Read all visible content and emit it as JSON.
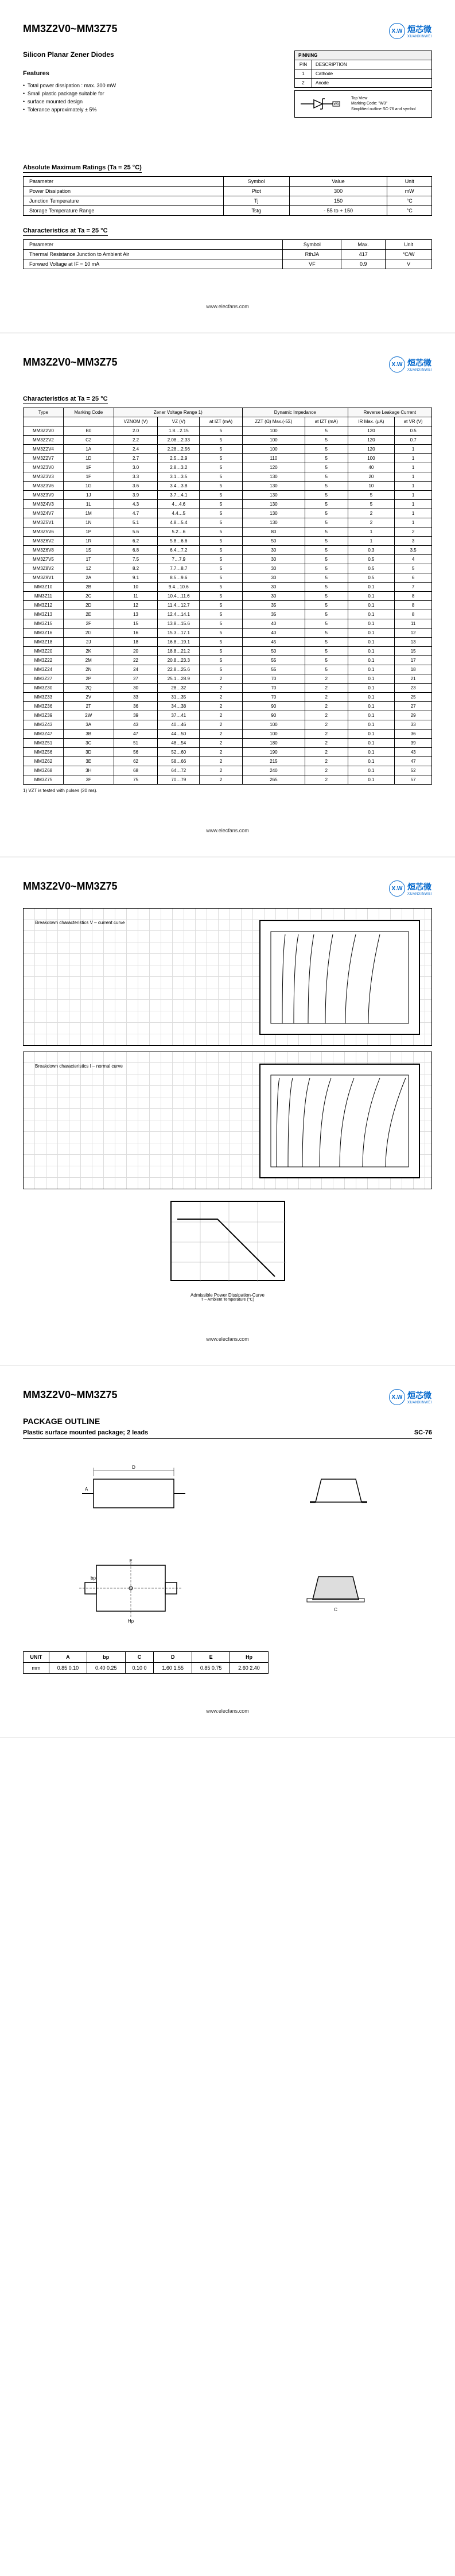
{
  "part_number": "MM3Z2V0~MM3Z75",
  "subtitle": "Silicon Planar Zener Diodes",
  "logo": {
    "mark": "X.W",
    "cn": "烜芯微",
    "en": "XUANXINWEI"
  },
  "url": "www.elecfans.com",
  "features": {
    "title": "Features",
    "items": [
      "Total power dissipation : max. 300 mW",
      "Small plastic package suitable for",
      "surface mounted design",
      "Tolerance approximately ± 5%"
    ]
  },
  "pinning": {
    "title": "PINNING",
    "headers": [
      "PIN",
      "DESCRIPTION"
    ],
    "rows": [
      [
        "1",
        "Cathode"
      ],
      [
        "2",
        "Anode"
      ]
    ],
    "symbol_label": "W3",
    "note_lines": [
      "Top View",
      "Marking Code: \"W3\"",
      "Simplified outline SC-76 and symbol"
    ]
  },
  "abs_max": {
    "title": "Absolute Maximum Ratings (Ta = 25 °C)",
    "headers": [
      "Parameter",
      "Symbol",
      "Value",
      "Unit"
    ],
    "rows": [
      [
        "Power Dissipation",
        "Ptot",
        "300",
        "mW"
      ],
      [
        "Junction Temperature",
        "Tj",
        "150",
        "°C"
      ],
      [
        "Storage Temperature Range",
        "Tstg",
        "- 55 to + 150",
        "°C"
      ]
    ]
  },
  "char_25": {
    "title": "Characteristics at Ta = 25 °C",
    "headers": [
      "Parameter",
      "Symbol",
      "Max.",
      "Unit"
    ],
    "rows": [
      [
        "Thermal Resistance Junction to Ambient Air",
        "RthJA",
        "417",
        "°C/W"
      ],
      [
        "Forward Voltage at IF = 10 mA",
        "VF",
        "0.9",
        "V"
      ]
    ]
  },
  "char_table": {
    "title": "Characteristics at Ta = 25 °C",
    "group_headers": [
      "Type",
      "Marking Code",
      "Zener Voltage Range 1)",
      "Dynamic Impedance",
      "Reverse Leakage Current"
    ],
    "sub_headers": [
      "",
      "",
      "VZNOM (V)",
      "VZ (V)",
      "at IZT (mA)",
      "ZZT (Ω) Max.(-5Σ)",
      "at IZT (mA)",
      "IR Max. (µA)",
      "at VR (V)"
    ],
    "rows": [
      [
        "MM3Z2V0",
        "B0",
        "2.0",
        "1.8…2.15",
        "5",
        "100",
        "5",
        "120",
        "0.5"
      ],
      [
        "MM3Z2V2",
        "C2",
        "2.2",
        "2.08…2.33",
        "5",
        "100",
        "5",
        "120",
        "0.7"
      ],
      [
        "MM3Z2V4",
        "1A",
        "2.4",
        "2.28…2.56",
        "5",
        "100",
        "5",
        "120",
        "1"
      ],
      [
        "MM3Z2V7",
        "1D",
        "2.7",
        "2.5…2.9",
        "5",
        "110",
        "5",
        "100",
        "1"
      ],
      [
        "MM3Z3V0",
        "1F",
        "3.0",
        "2.8…3.2",
        "5",
        "120",
        "5",
        "40",
        "1"
      ],
      [
        "MM3Z3V3",
        "1F",
        "3.3",
        "3.1…3.5",
        "5",
        "130",
        "5",
        "20",
        "1"
      ],
      [
        "MM3Z3V6",
        "1G",
        "3.6",
        "3.4…3.8",
        "5",
        "130",
        "5",
        "10",
        "1"
      ],
      [
        "MM3Z3V9",
        "1J",
        "3.9",
        "3.7…4.1",
        "5",
        "130",
        "5",
        "5",
        "1"
      ],
      [
        "MM3Z4V3",
        "1L",
        "4.3",
        "4…4.6",
        "5",
        "130",
        "5",
        "5",
        "1"
      ],
      [
        "MM3Z4V7",
        "1M",
        "4.7",
        "4.4…5",
        "5",
        "130",
        "5",
        "2",
        "1"
      ],
      [
        "MM3Z5V1",
        "1N",
        "5.1",
        "4.8…5.4",
        "5",
        "130",
        "5",
        "2",
        "1"
      ],
      [
        "MM3Z5V6",
        "1P",
        "5.6",
        "5.2…6",
        "5",
        "80",
        "5",
        "1",
        "2"
      ],
      [
        "MM3Z6V2",
        "1R",
        "6.2",
        "5.8…6.6",
        "5",
        "50",
        "5",
        "1",
        "3"
      ],
      [
        "MM3Z6V8",
        "1S",
        "6.8",
        "6.4…7.2",
        "5",
        "30",
        "5",
        "0.3",
        "3.5"
      ],
      [
        "MM3Z7V5",
        "1T",
        "7.5",
        "7…7.9",
        "5",
        "30",
        "5",
        "0.5",
        "4"
      ],
      [
        "MM3Z8V2",
        "1Z",
        "8.2",
        "7.7…8.7",
        "5",
        "30",
        "5",
        "0.5",
        "5"
      ],
      [
        "MM3Z9V1",
        "2A",
        "9.1",
        "8.5…9.6",
        "5",
        "30",
        "5",
        "0.5",
        "6"
      ],
      [
        "MM3Z10",
        "2B",
        "10",
        "9.4…10.6",
        "5",
        "30",
        "5",
        "0.1",
        "7"
      ],
      [
        "MM3Z11",
        "2C",
        "11",
        "10.4…11.6",
        "5",
        "30",
        "5",
        "0.1",
        "8"
      ],
      [
        "MM3Z12",
        "2D",
        "12",
        "11.4…12.7",
        "5",
        "35",
        "5",
        "0.1",
        "8"
      ],
      [
        "MM3Z13",
        "2E",
        "13",
        "12.4…14.1",
        "5",
        "35",
        "5",
        "0.1",
        "8"
      ],
      [
        "MM3Z15",
        "2F",
        "15",
        "13.8…15.6",
        "5",
        "40",
        "5",
        "0.1",
        "11"
      ],
      [
        "MM3Z16",
        "2G",
        "16",
        "15.3…17.1",
        "5",
        "40",
        "5",
        "0.1",
        "12"
      ],
      [
        "MM3Z18",
        "2J",
        "18",
        "16.8…19.1",
        "5",
        "45",
        "5",
        "0.1",
        "13"
      ],
      [
        "MM3Z20",
        "2K",
        "20",
        "18.8…21.2",
        "5",
        "50",
        "5",
        "0.1",
        "15"
      ],
      [
        "MM3Z22",
        "2M",
        "22",
        "20.8…23.3",
        "5",
        "55",
        "5",
        "0.1",
        "17"
      ],
      [
        "MM3Z24",
        "2N",
        "24",
        "22.8…25.6",
        "5",
        "55",
        "5",
        "0.1",
        "18"
      ],
      [
        "MM3Z27",
        "2P",
        "27",
        "25.1…28.9",
        "2",
        "70",
        "2",
        "0.1",
        "21"
      ],
      [
        "MM3Z30",
        "2Q",
        "30",
        "28…32",
        "2",
        "70",
        "2",
        "0.1",
        "23"
      ],
      [
        "MM3Z33",
        "2V",
        "33",
        "31…35",
        "2",
        "70",
        "2",
        "0.1",
        "25"
      ],
      [
        "MM3Z36",
        "2T",
        "36",
        "34…38",
        "2",
        "90",
        "2",
        "0.1",
        "27"
      ],
      [
        "MM3Z39",
        "2W",
        "39",
        "37…41",
        "2",
        "90",
        "2",
        "0.1",
        "29"
      ],
      [
        "MM3Z43",
        "3A",
        "43",
        "40…46",
        "2",
        "100",
        "2",
        "0.1",
        "33"
      ],
      [
        "MM3Z47",
        "3B",
        "47",
        "44…50",
        "2",
        "100",
        "2",
        "0.1",
        "36"
      ],
      [
        "MM3Z51",
        "3C",
        "51",
        "48…54",
        "2",
        "180",
        "2",
        "0.1",
        "39"
      ],
      [
        "MM3Z56",
        "3D",
        "56",
        "52…60",
        "2",
        "190",
        "2",
        "0.1",
        "43"
      ],
      [
        "MM3Z62",
        "3E",
        "62",
        "58…66",
        "2",
        "215",
        "2",
        "0.1",
        "47"
      ],
      [
        "MM3Z68",
        "3H",
        "68",
        "64…72",
        "2",
        "240",
        "2",
        "0.1",
        "52"
      ],
      [
        "MM3Z75",
        "3F",
        "75",
        "70…79",
        "2",
        "265",
        "2",
        "0.1",
        "57"
      ]
    ],
    "footnote": "1) VZT is tested with pulses (20 ms)."
  },
  "graphs": {
    "g1_title": "Breakdown characteristics V – current curve",
    "g2_title": "Breakdown characteristics I – normal curve",
    "derate_title": "Admissible Power Dissipation-Curve",
    "derate_sub": "T – Ambient Temperature (°C)"
  },
  "package": {
    "section": "PACKAGE OUTLINE",
    "desc": "Plastic surface mounted package; 2 leads",
    "code": "SC-76",
    "dim_headers": [
      "UNIT",
      "A",
      "bp",
      "C",
      "D",
      "E",
      "Hp"
    ],
    "dim_rows": [
      [
        "mm",
        "0.85 0.10",
        "0.40 0.25",
        "0.10 0",
        "1.60 1.55",
        "0.85 0.75",
        "2.60 2.40"
      ]
    ]
  },
  "colors": {
    "border": "#000000",
    "brand": "#0066cc",
    "grid": "#dddddd"
  }
}
